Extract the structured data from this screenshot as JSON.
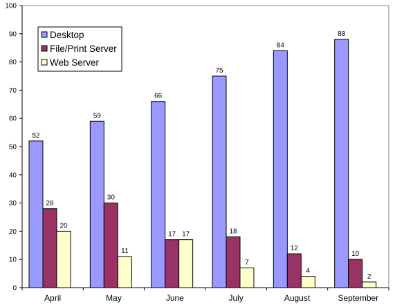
{
  "chart_data": {
    "type": "bar",
    "title": "",
    "xlabel": "",
    "ylabel": "",
    "ylim": [
      0,
      100
    ],
    "yticks": [
      0,
      10,
      20,
      30,
      40,
      50,
      60,
      70,
      80,
      90,
      100
    ],
    "grid": false,
    "legend_position": "top-left",
    "categories": [
      "April",
      "May",
      "June",
      "July",
      "August",
      "September"
    ],
    "series": [
      {
        "name": "Desktop",
        "color": "#9999ff",
        "values": [
          52,
          59,
          66,
          75,
          84,
          88
        ]
      },
      {
        "name": "File/Print Server",
        "color": "#993366",
        "values": [
          28,
          30,
          17,
          18,
          12,
          10
        ]
      },
      {
        "name": "Web Server",
        "color": "#ffffcc",
        "values": [
          20,
          11,
          17,
          7,
          4,
          2
        ]
      }
    ]
  }
}
